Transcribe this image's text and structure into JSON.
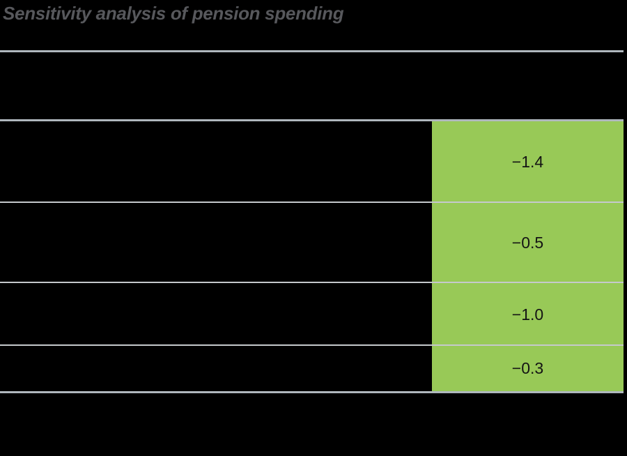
{
  "page": {
    "title": "Sensitivity analysis of pension spending"
  },
  "table": {
    "highlight_column": {
      "rows": [
        {
          "value": "−1.4"
        },
        {
          "value": "−0.5"
        },
        {
          "value": "−1.0"
        },
        {
          "value": "−0.3"
        }
      ]
    }
  },
  "colors": {
    "background": "#000000",
    "title_text": "#57585C",
    "rule_strong": "#AFB7BD",
    "rule_divider": "#C5C9CC",
    "highlight_green": "#98C957",
    "cell_value_text": "#141414"
  },
  "chart_data": {
    "type": "table",
    "title": "Sensitivity analysis of pension spending",
    "highlighted_column_values": [
      -1.4,
      -0.5,
      -1.0,
      -0.3
    ],
    "layout": {
      "rows": 4,
      "highlight_column_position": "right",
      "legend": "none",
      "grid": "horizontal rules between rows",
      "note": "Row labels and header text are not legible in the image (rendered black on black); only the green highlighted column values are visible."
    }
  }
}
